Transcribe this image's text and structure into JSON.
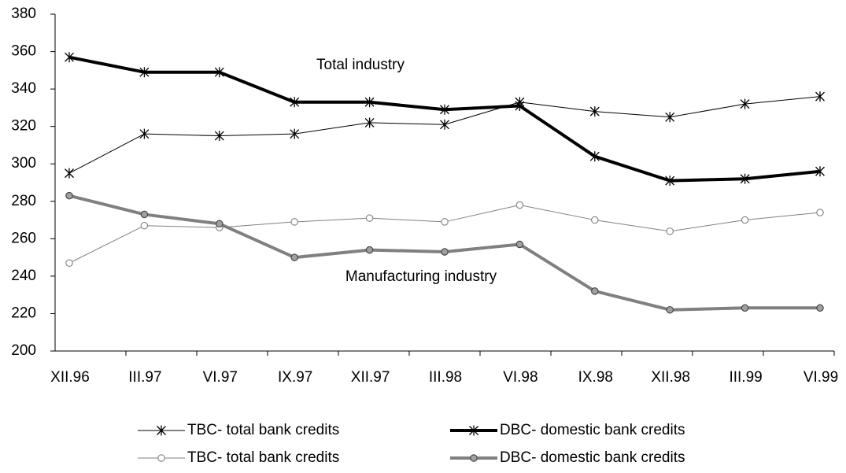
{
  "chart_data": {
    "type": "line",
    "categories": [
      "XII.96",
      "III.97",
      "VI.97",
      "IX.97",
      "XII.97",
      "III.98",
      "VI.98",
      "IX.98",
      "XII.98",
      "III.99",
      "VI.99"
    ],
    "ylim": [
      200,
      380
    ],
    "yticks": [
      200,
      220,
      240,
      260,
      280,
      300,
      320,
      340,
      360,
      380
    ],
    "annotations": [
      "Total industry",
      "Manufacturing industry"
    ],
    "series": [
      {
        "name": "TBC- total bank credits",
        "color": "#000000",
        "width": 1,
        "marker": "star",
        "values": [
          295,
          316,
          315,
          316,
          322,
          321,
          333,
          328,
          325,
          332,
          336
        ]
      },
      {
        "name": "DBC- domestic bank credits",
        "color": "#000000",
        "width": 4,
        "marker": "star",
        "values": [
          357,
          349,
          349,
          333,
          333,
          329,
          331,
          304,
          291,
          292,
          296
        ]
      },
      {
        "name": "TBC- total bank credits",
        "color": "#808080",
        "width": 1,
        "marker": "circle",
        "values": [
          247,
          267,
          266,
          269,
          271,
          269,
          278,
          270,
          264,
          270,
          274
        ]
      },
      {
        "name": "DBC- domestic bank credits",
        "color": "#808080",
        "width": 4,
        "marker": "circle-filled",
        "values": [
          283,
          273,
          268,
          250,
          254,
          253,
          257,
          232,
          222,
          223,
          223
        ]
      }
    ]
  }
}
